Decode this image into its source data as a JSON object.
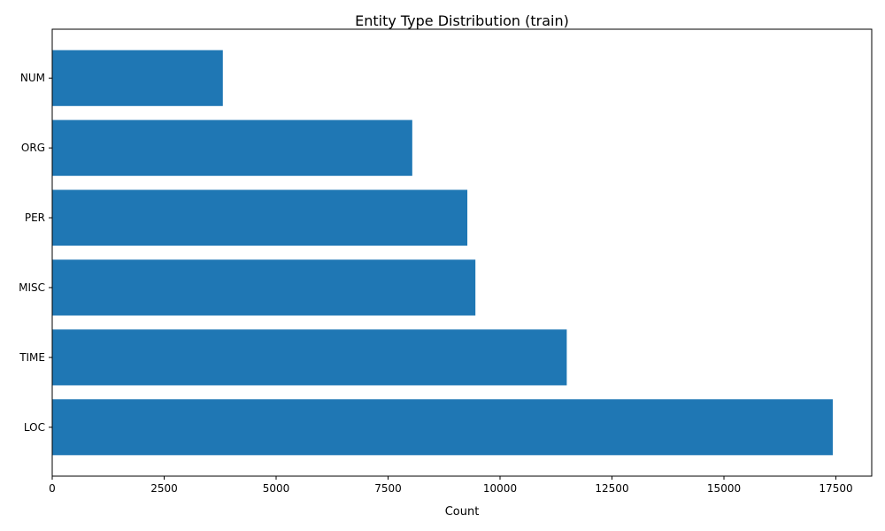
{
  "chart_data": {
    "type": "bar",
    "orientation": "horizontal",
    "title": "Entity Type Distribution (train)",
    "xlabel": "Count",
    "ylabel": "",
    "categories": [
      "LOC",
      "TIME",
      "MISC",
      "PER",
      "ORG",
      "NUM"
    ],
    "values": [
      17430,
      11490,
      9450,
      9270,
      8040,
      3810
    ],
    "xlim": [
      0,
      18300
    ],
    "xticks": [
      0,
      2500,
      5000,
      7500,
      10000,
      12500,
      15000,
      17500
    ],
    "xtick_labels": [
      "0",
      "2500",
      "5000",
      "7500",
      "10000",
      "12500",
      "15000",
      "17500"
    ],
    "bar_color": "#1f77b4",
    "grid": false,
    "legend": "none"
  }
}
